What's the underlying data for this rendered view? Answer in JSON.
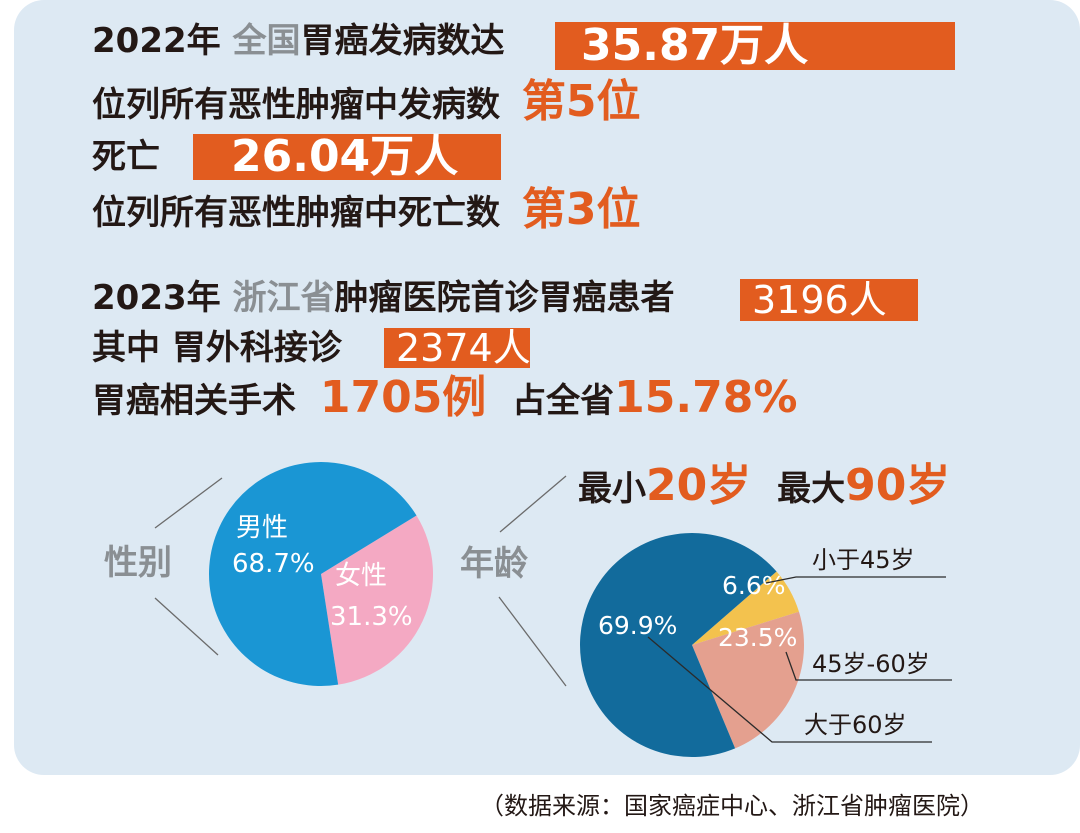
{
  "stats": {
    "l1_year": "2022年",
    "l1_scope": "全国",
    "l1_text": "胃癌发病数达",
    "l1_value": "35.87万人",
    "l2_text": "位列所有恶性肿瘤中发病数",
    "l2_rank": "第5位",
    "l3_text": "死亡",
    "l3_value": "26.04万人",
    "l4_text": "位列所有恶性肿瘤中死亡数",
    "l4_rank": "第3位",
    "l5_year": "2023年",
    "l5_org": "浙江省",
    "l5_text": "肿瘤医院首诊胃癌患者",
    "l5_value": "3196人",
    "l6_text": "其中  胃外科接诊",
    "l6_value": "2374人",
    "l7_text": "胃癌相关手术",
    "l7_value": "1705例",
    "l7_text2": "占全省",
    "l7_pct": "15.78%"
  },
  "age_range": {
    "min_label": "最小",
    "min_value": "20岁",
    "max_label": "最大",
    "max_value": "90岁"
  },
  "source": "（数据来源：国家癌症中心、浙江省肿瘤医院）",
  "colors": {
    "accent": "#e25c1f",
    "background": "#dde9f3",
    "male": "#1a96d4",
    "female": "#f4a9c3",
    "age_over60": "#126b9c",
    "age_45_60": "#e4a08f",
    "age_under45": "#f3c24e"
  },
  "chart_data": [
    {
      "type": "pie",
      "title": "性别",
      "slices": [
        {
          "label": "男性",
          "value": 68.7,
          "value_text": "68.7%"
        },
        {
          "label": "女性",
          "value": 31.3,
          "value_text": "31.3%"
        }
      ]
    },
    {
      "type": "pie",
      "title": "年龄",
      "slices": [
        {
          "label": "小于45岁",
          "value": 6.6,
          "value_text": "6.6%"
        },
        {
          "label": "45岁-60岁",
          "value": 23.5,
          "value_text": "23.5%"
        },
        {
          "label": "大于60岁",
          "value": 69.9,
          "value_text": "69.9%"
        }
      ]
    }
  ]
}
